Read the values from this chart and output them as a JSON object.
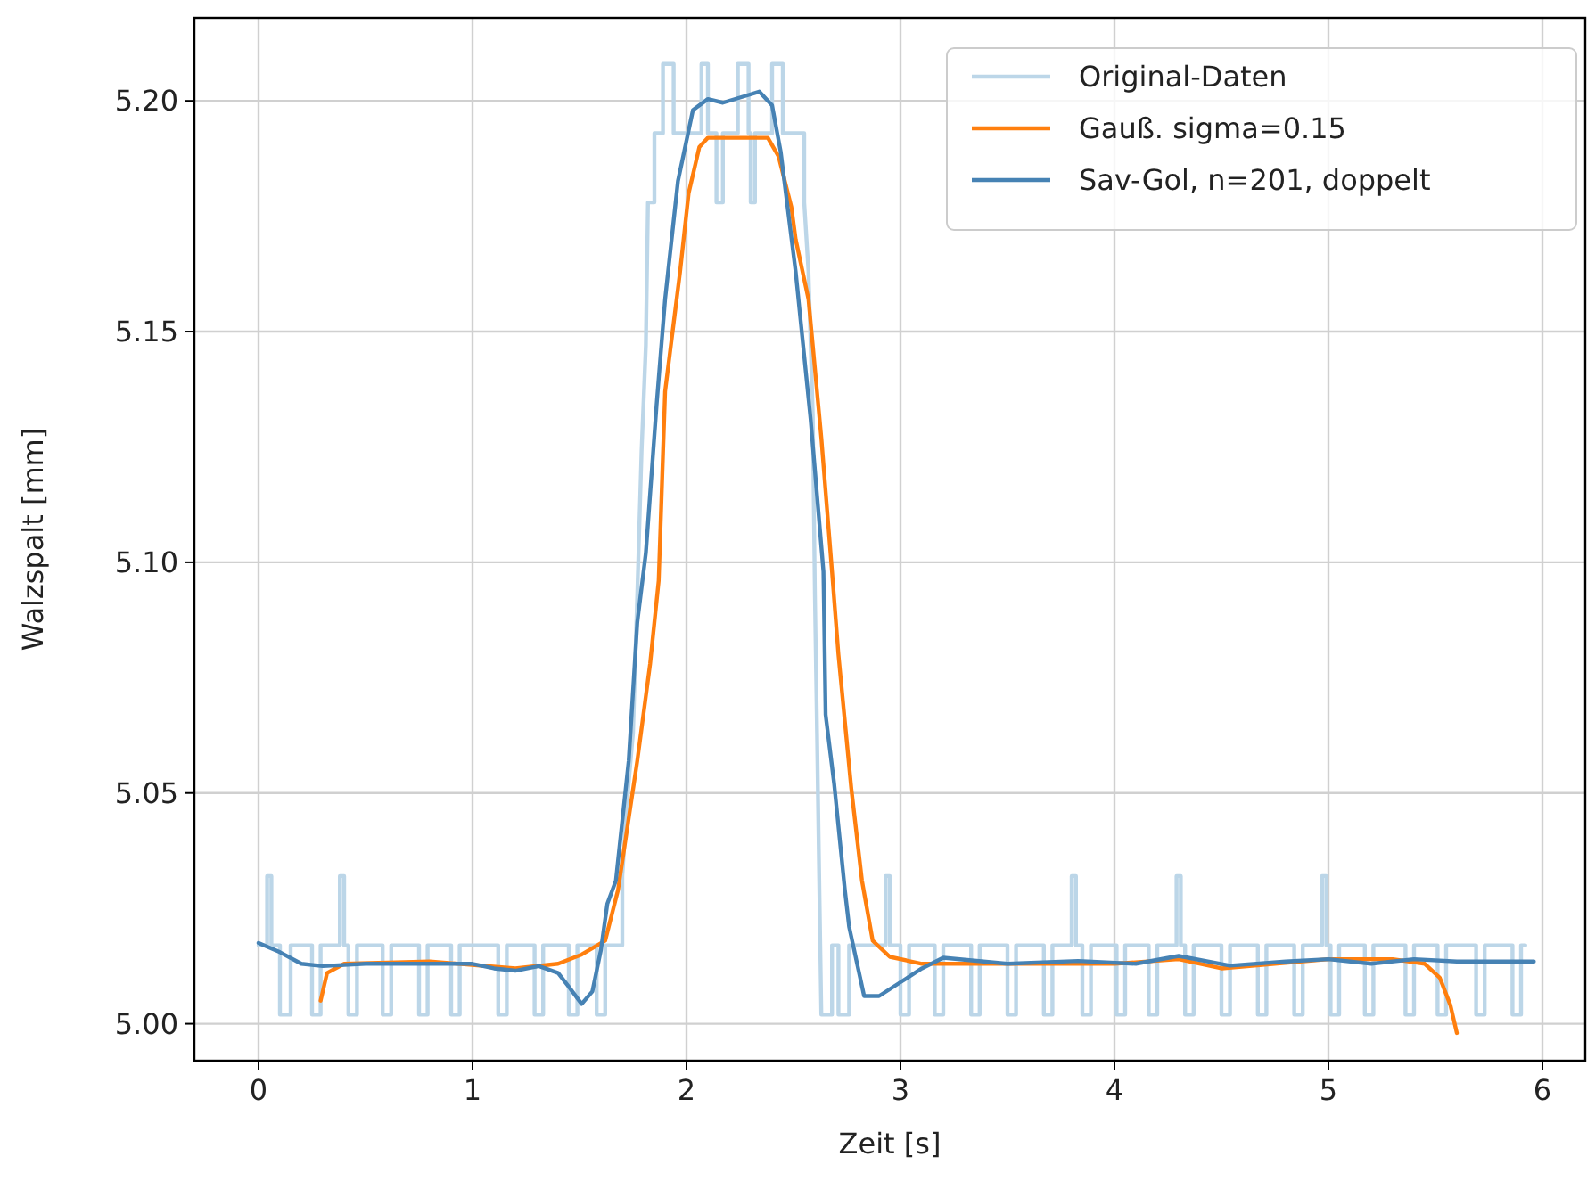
{
  "chart_data": {
    "type": "line",
    "xlabel": "Zeit [s]",
    "ylabel": "Walzspalt [mm]",
    "xlim": [
      -0.3,
      6.2
    ],
    "ylim": [
      4.992,
      5.218
    ],
    "xticks": [
      0,
      1,
      2,
      3,
      4,
      5,
      6
    ],
    "yticks": [
      {
        "value": 5.0,
        "label": "5.00"
      },
      {
        "value": 5.05,
        "label": "5.05"
      },
      {
        "value": 5.1,
        "label": "5.10"
      },
      {
        "value": 5.15,
        "label": "5.15"
      },
      {
        "value": 5.2,
        "label": "5.20"
      }
    ],
    "grid": true,
    "legend": "top right",
    "marker": "none",
    "line_style": "solid",
    "series": [
      {
        "name": "Original-Daten",
        "color": "#bcd6e8",
        "x": [
          0,
          0.04,
          0.04,
          0.06,
          0.06,
          0.1,
          0.1,
          0.15,
          0.15,
          0.25,
          0.25,
          0.29,
          0.29,
          0.38,
          0.38,
          0.4,
          0.4,
          0.42,
          0.42,
          0.46,
          0.46,
          0.58,
          0.58,
          0.62,
          0.62,
          0.75,
          0.75,
          0.79,
          0.79,
          0.9,
          0.9,
          0.94,
          0.94,
          1.12,
          1.12,
          1.16,
          1.16,
          1.29,
          1.29,
          1.33,
          1.33,
          1.45,
          1.45,
          1.49,
          1.49,
          1.58,
          1.58,
          1.62,
          1.62,
          1.7,
          1.7,
          1.72,
          1.75,
          1.77,
          1.79,
          1.81,
          1.82,
          1.85,
          1.85,
          1.89,
          1.89,
          1.94,
          1.94,
          2.07,
          2.07,
          2.1,
          2.1,
          2.14,
          2.14,
          2.17,
          2.17,
          2.24,
          2.24,
          2.29,
          2.29,
          2.3,
          2.3,
          2.32,
          2.32,
          2.4,
          2.4,
          2.45,
          2.45,
          2.55,
          2.55,
          2.57,
          2.59,
          2.6,
          2.61,
          2.62,
          2.63,
          2.68,
          2.68,
          2.71,
          2.71,
          2.76,
          2.76,
          2.93,
          2.93,
          2.95,
          2.95,
          3.0,
          3.0,
          3.04,
          3.04,
          3.16,
          3.16,
          3.2,
          3.2,
          3.33,
          3.33,
          3.37,
          3.37,
          3.5,
          3.5,
          3.54,
          3.54,
          3.67,
          3.67,
          3.71,
          3.71,
          3.8,
          3.8,
          3.82,
          3.82,
          3.85,
          3.85,
          3.89,
          3.89,
          4.01,
          4.01,
          4.05,
          4.05,
          4.16,
          4.16,
          4.2,
          4.2,
          4.29,
          4.29,
          4.31,
          4.31,
          4.33,
          4.33,
          4.37,
          4.37,
          4.5,
          4.5,
          4.54,
          4.54,
          4.67,
          4.67,
          4.71,
          4.71,
          4.84,
          4.84,
          4.88,
          4.88,
          4.97,
          4.97,
          4.99,
          4.99,
          5.01,
          5.01,
          5.05,
          5.05,
          5.17,
          5.17,
          5.21,
          5.21,
          5.36,
          5.36,
          5.4,
          5.4,
          5.51,
          5.51,
          5.55,
          5.55,
          5.69,
          5.69,
          5.73,
          5.73,
          5.86,
          5.86,
          5.9,
          5.9,
          5.92
        ],
        "values": [
          5.017,
          5.017,
          5.032,
          5.032,
          5.017,
          5.017,
          5.002,
          5.002,
          5.017,
          5.017,
          5.002,
          5.002,
          5.017,
          5.017,
          5.032,
          5.032,
          5.017,
          5.017,
          5.002,
          5.002,
          5.017,
          5.017,
          5.002,
          5.002,
          5.017,
          5.017,
          5.002,
          5.002,
          5.017,
          5.017,
          5.002,
          5.002,
          5.017,
          5.017,
          5.002,
          5.002,
          5.017,
          5.017,
          5.002,
          5.002,
          5.017,
          5.017,
          5.002,
          5.002,
          5.017,
          5.017,
          5.002,
          5.002,
          5.017,
          5.017,
          5.032,
          5.047,
          5.063,
          5.093,
          5.124,
          5.147,
          5.178,
          5.178,
          5.193,
          5.193,
          5.208,
          5.208,
          5.193,
          5.193,
          5.208,
          5.208,
          5.193,
          5.193,
          5.178,
          5.178,
          5.193,
          5.193,
          5.208,
          5.208,
          5.193,
          5.193,
          5.178,
          5.178,
          5.193,
          5.193,
          5.208,
          5.208,
          5.193,
          5.193,
          5.178,
          5.163,
          5.132,
          5.093,
          5.063,
          5.032,
          5.002,
          5.002,
          5.017,
          5.017,
          5.002,
          5.002,
          5.017,
          5.017,
          5.032,
          5.032,
          5.017,
          5.017,
          5.002,
          5.002,
          5.017,
          5.017,
          5.002,
          5.002,
          5.017,
          5.017,
          5.002,
          5.002,
          5.017,
          5.017,
          5.002,
          5.002,
          5.017,
          5.017,
          5.002,
          5.002,
          5.017,
          5.017,
          5.032,
          5.032,
          5.017,
          5.017,
          5.002,
          5.002,
          5.017,
          5.017,
          5.002,
          5.002,
          5.017,
          5.017,
          5.002,
          5.002,
          5.017,
          5.017,
          5.032,
          5.032,
          5.017,
          5.017,
          5.002,
          5.002,
          5.017,
          5.017,
          5.002,
          5.002,
          5.017,
          5.017,
          5.002,
          5.002,
          5.017,
          5.017,
          5.002,
          5.002,
          5.017,
          5.017,
          5.032,
          5.032,
          5.017,
          5.017,
          5.002,
          5.002,
          5.017,
          5.017,
          5.002,
          5.002,
          5.017,
          5.017,
          5.002,
          5.002,
          5.017,
          5.017,
          5.002,
          5.002,
          5.017,
          5.017,
          5.002,
          5.002,
          5.017,
          5.017,
          5.002,
          5.002,
          5.017,
          5.017
        ]
      },
      {
        "name": "Gauß. sigma=0.15",
        "type": "line",
        "color": "#ff7f0e",
        "x": [
          0.29,
          0.32,
          0.4,
          0.8,
          1.2,
          1.4,
          1.51,
          1.62,
          1.68,
          1.77,
          1.83,
          1.87,
          1.9,
          1.97,
          2.01,
          2.06,
          2.1,
          2.38,
          2.43,
          2.49,
          2.51,
          2.57,
          2.63,
          2.68,
          2.71,
          2.77,
          2.82,
          2.87,
          2.95,
          3.1,
          3.5,
          4.0,
          4.3,
          4.5,
          5.0,
          5.3,
          5.45,
          5.52,
          5.57,
          5.6
        ],
        "values": [
          5.005,
          5.011,
          5.013,
          5.0135,
          5.012,
          5.013,
          5.015,
          5.018,
          5.029,
          5.057,
          5.078,
          5.096,
          5.137,
          5.163,
          5.18,
          5.19,
          5.192,
          5.192,
          5.188,
          5.177,
          5.17,
          5.157,
          5.127,
          5.098,
          5.08,
          5.051,
          5.031,
          5.018,
          5.0145,
          5.013,
          5.013,
          5.013,
          5.014,
          5.012,
          5.014,
          5.014,
          5.013,
          5.01,
          5.004,
          4.998
        ]
      },
      {
        "name": "Sav-Gol, n=201, doppelt",
        "type": "line",
        "color": "#4682b4",
        "x": [
          0,
          0.1,
          0.2,
          0.3,
          0.5,
          0.8,
          1.0,
          1.1,
          1.2,
          1.31,
          1.4,
          1.45,
          1.51,
          1.56,
          1.6,
          1.63,
          1.67,
          1.73,
          1.77,
          1.81,
          1.86,
          1.9,
          1.96,
          2.03,
          2.1,
          2.17,
          2.27,
          2.34,
          2.4,
          2.44,
          2.51,
          2.58,
          2.64,
          2.65,
          2.69,
          2.74,
          2.76,
          2.83,
          2.9,
          3.0,
          3.1,
          3.2,
          3.5,
          3.83,
          4.1,
          4.3,
          4.54,
          4.8,
          5.0,
          5.2,
          5.4,
          5.6,
          5.96
        ],
        "values": [
          5.0175,
          5.0155,
          5.013,
          5.0125,
          5.013,
          5.013,
          5.013,
          5.012,
          5.0115,
          5.0125,
          5.011,
          5.008,
          5.0043,
          5.007,
          5.016,
          5.026,
          5.031,
          5.057,
          5.087,
          5.102,
          5.134,
          5.157,
          5.1826,
          5.198,
          5.2004,
          5.1996,
          5.201,
          5.202,
          5.199,
          5.189,
          5.163,
          5.131,
          5.098,
          5.067,
          5.052,
          5.029,
          5.021,
          5.006,
          5.006,
          5.009,
          5.012,
          5.0143,
          5.013,
          5.0136,
          5.013,
          5.0147,
          5.0126,
          5.0135,
          5.014,
          5.013,
          5.014,
          5.0135,
          5.0135
        ]
      }
    ]
  }
}
